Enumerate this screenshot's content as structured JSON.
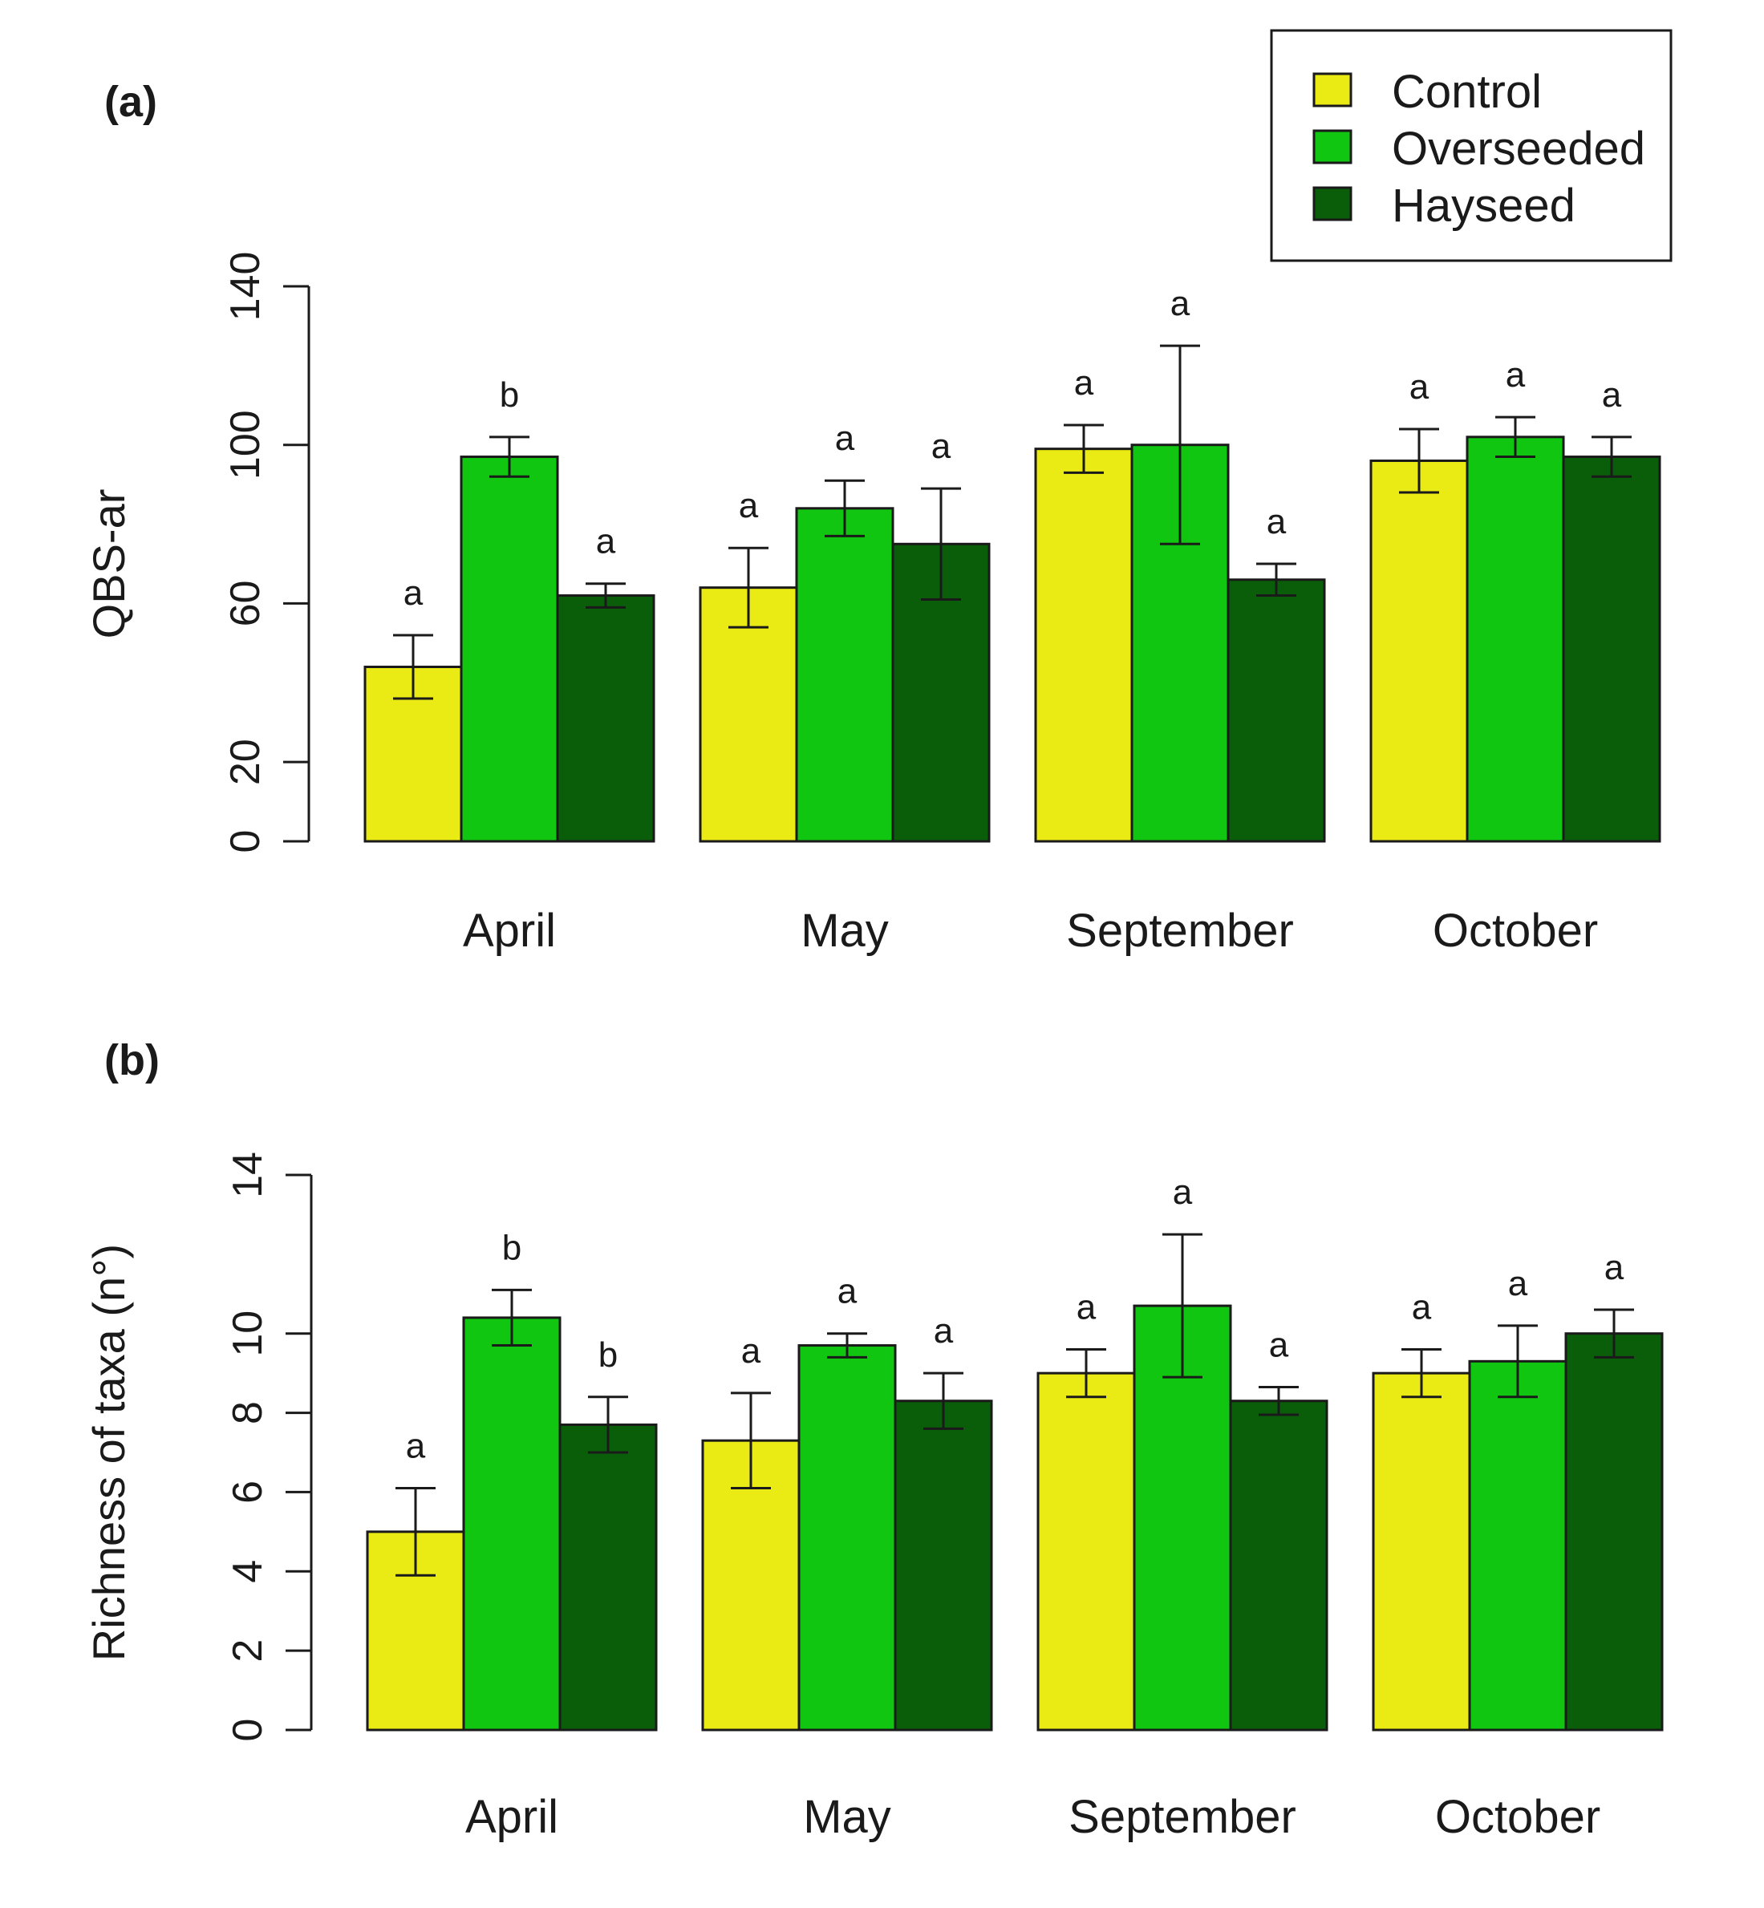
{
  "chart_data": [
    {
      "type": "bar",
      "panel_label": "(a)",
      "title": "",
      "xlabel": "",
      "ylabel": "QBS-ar",
      "ylim": [
        0,
        140
      ],
      "yticks": [
        0,
        20,
        60,
        100,
        140
      ],
      "categories": [
        "April",
        "May",
        "September",
        "October"
      ],
      "series": [
        {
          "name": "Control",
          "values": [
            44,
            64,
            99,
            96
          ],
          "errors": [
            8,
            10,
            6,
            8
          ],
          "letters": [
            "a",
            "a",
            "a",
            "a"
          ]
        },
        {
          "name": "Overseeded",
          "values": [
            97,
            84,
            100,
            102
          ],
          "errors": [
            5,
            7,
            25,
            5
          ],
          "letters": [
            "b",
            "a",
            "a",
            "a"
          ]
        },
        {
          "name": "Hayseed",
          "values": [
            62,
            75,
            66,
            97
          ],
          "errors": [
            3,
            14,
            4,
            5
          ],
          "letters": [
            "a",
            "a",
            "a",
            "a"
          ]
        }
      ],
      "legend": {
        "position": "top-right",
        "entries": [
          "Control",
          "Overseeded",
          "Hayseed"
        ]
      }
    },
    {
      "type": "bar",
      "panel_label": "(b)",
      "title": "",
      "xlabel": "",
      "ylabel": "Richness of taxa (n°)",
      "ylim": [
        0,
        14
      ],
      "yticks": [
        0,
        2,
        4,
        6,
        8,
        10,
        14
      ],
      "categories": [
        "April",
        "May",
        "September",
        "October"
      ],
      "series": [
        {
          "name": "Control",
          "values": [
            5,
            7.3,
            9,
            9
          ],
          "errors": [
            1.1,
            1.2,
            0.6,
            0.6
          ],
          "letters": [
            "a",
            "a",
            "a",
            "a"
          ]
        },
        {
          "name": "Overseeded",
          "values": [
            10.4,
            9.7,
            10.7,
            9.3
          ],
          "errors": [
            0.7,
            0.3,
            1.8,
            0.9
          ],
          "letters": [
            "b",
            "a",
            "a",
            "a"
          ]
        },
        {
          "name": "Hayseed",
          "values": [
            7.7,
            8.3,
            8.3,
            10
          ],
          "errors": [
            0.7,
            0.7,
            0.35,
            0.6
          ],
          "letters": [
            "b",
            "a",
            "a",
            "a"
          ]
        }
      ]
    }
  ],
  "colors": {
    "Control": "#eaea14",
    "Overseeded": "#11c611",
    "Hayseed": "#0a5e0a",
    "axis": "#1a1a1a"
  }
}
